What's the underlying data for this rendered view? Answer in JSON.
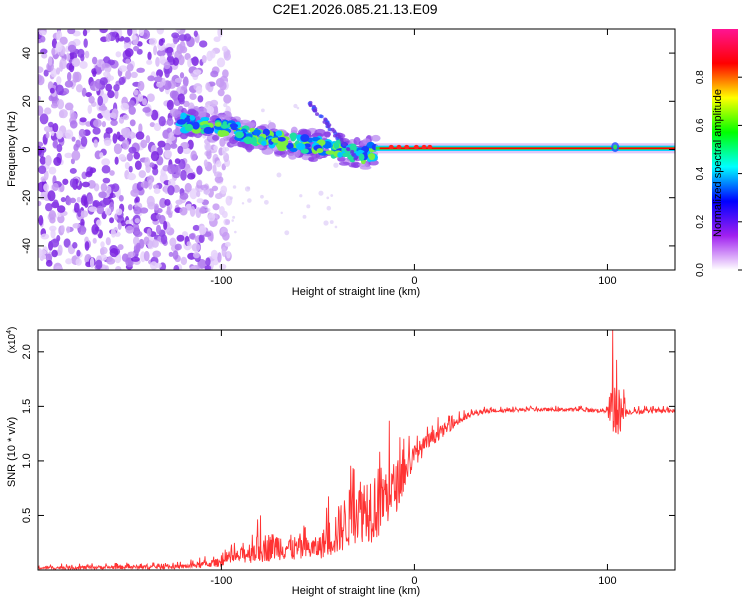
{
  "title": "C2E1.2026.085.21.13.E09",
  "chart_data": [
    {
      "type": "heatmap",
      "xlabel": "Height of straight line (km)",
      "ylabel": "Frequency (Hz)",
      "xlim": [
        -195,
        135
      ],
      "ylim": [
        -50,
        50
      ],
      "xticks": [
        -100,
        0,
        100
      ],
      "xtick_labels": [
        "-100",
        "0",
        "100"
      ],
      "yticks": [
        -40,
        -20,
        0,
        20,
        40
      ],
      "ytick_labels": [
        "-40",
        "-20",
        "0",
        "20",
        "40"
      ],
      "grid": false,
      "colorbar": {
        "label": "Normalized spectral amplitude",
        "range": [
          0,
          1
        ],
        "ticks": [
          0.0,
          0.2,
          0.4,
          0.6,
          0.8
        ],
        "tick_labels": [
          "0.0",
          "0.2",
          "0.4",
          "0.6",
          "0.8"
        ],
        "colors": [
          "#ffffff",
          "#a020f0",
          "#0000ff",
          "#00ffff",
          "#00ff00",
          "#ffff00",
          "#ff0000",
          "#ff1493"
        ]
      },
      "features": {
        "noise_region_x": [
          -195,
          -100
        ],
        "ridge": {
          "x": [
            -125,
            -115,
            -105,
            -95,
            -85,
            -75,
            -65,
            -55,
            -45,
            -35,
            -25,
            -20,
            -10,
            0,
            10,
            20,
            40,
            60,
            80,
            100,
            104,
            120,
            135
          ],
          "y": [
            11,
            11,
            10,
            8,
            6,
            5,
            3,
            2,
            1,
            -1,
            -2,
            0,
            1,
            1,
            1,
            0.5,
            0.5,
            0.5,
            0.5,
            0.5,
            1,
            0.5,
            0.5
          ]
        },
        "ridge_color": "#ff0000"
      }
    },
    {
      "type": "line",
      "xlabel": "Height of straight line (km)",
      "ylabel": "SNR (10 * v/v)",
      "y_multiplier_label": "(x10",
      "y_multiplier_exp": "4",
      "y_multiplier_close": ")",
      "xlim": [
        -195,
        135
      ],
      "ylim": [
        0,
        22000
      ],
      "xticks": [
        -100,
        0,
        100
      ],
      "xtick_labels": [
        "-100",
        "0",
        "100"
      ],
      "yticks": [
        5000,
        10000,
        15000,
        20000
      ],
      "ytick_labels": [
        "0.5",
        "1.0",
        "1.5",
        "2.0"
      ],
      "grid": false,
      "series": [
        {
          "name": "SNR",
          "color": "#ff3333",
          "envelope_x": [
            -195,
            -120,
            -100,
            -90,
            -80,
            -70,
            -60,
            -50,
            -40,
            -30,
            -20,
            -10,
            0,
            10,
            20,
            30,
            40,
            60,
            80,
            100,
            103,
            106,
            110,
            135
          ],
          "envelope_mean": [
            200,
            300,
            700,
            1300,
            2000,
            2200,
            1900,
            2000,
            3500,
            5500,
            6000,
            7500,
            10500,
            12200,
            13400,
            14300,
            14600,
            14700,
            14700,
            14600,
            14700,
            14500,
            14500,
            14600
          ],
          "envelope_spread": [
            300,
            400,
            800,
            1400,
            2700,
            2600,
            2300,
            2000,
            4500,
            6000,
            7000,
            5000,
            2000,
            1400,
            900,
            500,
            350,
            300,
            300,
            400,
            7000,
            4500,
            500,
            350
          ]
        }
      ]
    }
  ]
}
